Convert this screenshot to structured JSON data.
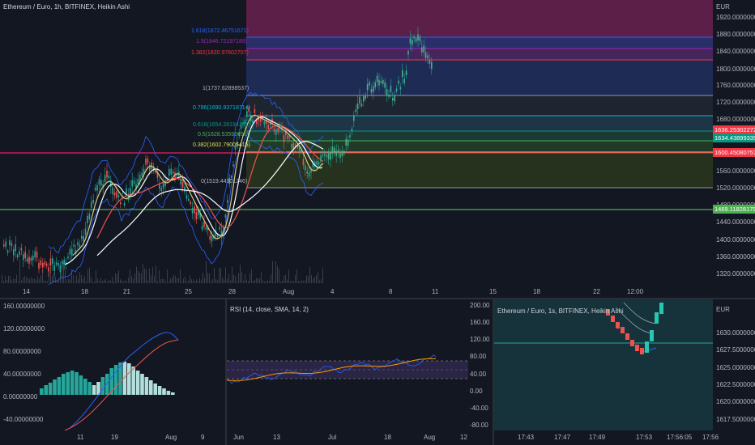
{
  "main": {
    "title": "Ethereum / Euro, 1h, BITFINEX, Heikin Ashi",
    "currency": "EUR",
    "y_ticks": [
      "1920.00000000",
      "1880.00000000",
      "1840.00000000",
      "1800.00000000",
      "1760.00000000",
      "1720.00000000",
      "1680.00000000",
      "1560.00000000",
      "1520.00000000",
      "1480.00000000",
      "1440.00000000",
      "1400.00000000",
      "1360.00000000",
      "1320.00000000"
    ],
    "price_tags": [
      {
        "text": "1636.25302272",
        "color": "#f23645"
      },
      {
        "text": "1634.43899335",
        "color": "#089981"
      },
      {
        "text": "1600.45080757",
        "color": "#f23645"
      },
      {
        "text": "1469.11828179",
        "color": "#4caf50"
      }
    ],
    "x_ticks": [
      "14",
      "18",
      "21",
      "25",
      "28",
      "Aug",
      "4",
      "8",
      "11",
      "15",
      "18",
      "22",
      "12:00"
    ],
    "fib_levels": [
      {
        "label": "1.618(1872.46751671)",
        "color": "#2962ff"
      },
      {
        "label": "1.5(1846.72197189)",
        "color": "#9c27b0"
      },
      {
        "label": "1.382(1820.97602707)",
        "color": "#f23645"
      },
      {
        "label": "1(1737.62898537)",
        "color": "#787b86"
      },
      {
        "label": "0.786(1690.93718714)",
        "color": "#00bcd4"
      },
      {
        "label": "0.618(1654.28194381)",
        "color": "#089981"
      },
      {
        "label": "0.5(1628.53599898)",
        "color": "#4caf50"
      },
      {
        "label": "0.382(1602.79005415)",
        "color": "#e2e24a"
      },
      {
        "label": "0(1519.44301246)",
        "color": "#787b86"
      }
    ]
  },
  "macd": {
    "y_ticks": [
      "160.00000000",
      "120.00000000",
      "80.00000000",
      "40.00000000",
      "0.00000000",
      "-40.00000000"
    ],
    "x_ticks": [
      "11",
      "19",
      "Aug",
      "9"
    ]
  },
  "rsi": {
    "title": "RSI (14, close, SMA, 14, 2)",
    "y_ticks": [
      "200.00",
      "160.00",
      "120.00",
      "80.00",
      "40.00",
      "0.00",
      "-40.00",
      "-80.00"
    ],
    "x_ticks": [
      "Jun",
      "13",
      "Jul",
      "18",
      "Aug",
      "12"
    ]
  },
  "mini": {
    "title": "Ethereum / Euro, 1s, BITFINEX, Heikin Ashi",
    "currency": "EUR",
    "y_ticks": [
      "1630.00000000",
      "1627.50000000",
      "1625.00000000",
      "1622.50000000",
      "1620.00000000",
      "1617.50000000"
    ],
    "x_ticks": [
      "17:43",
      "17:47",
      "17:49",
      "17:53",
      "17:56:05",
      "17:56"
    ]
  }
}
